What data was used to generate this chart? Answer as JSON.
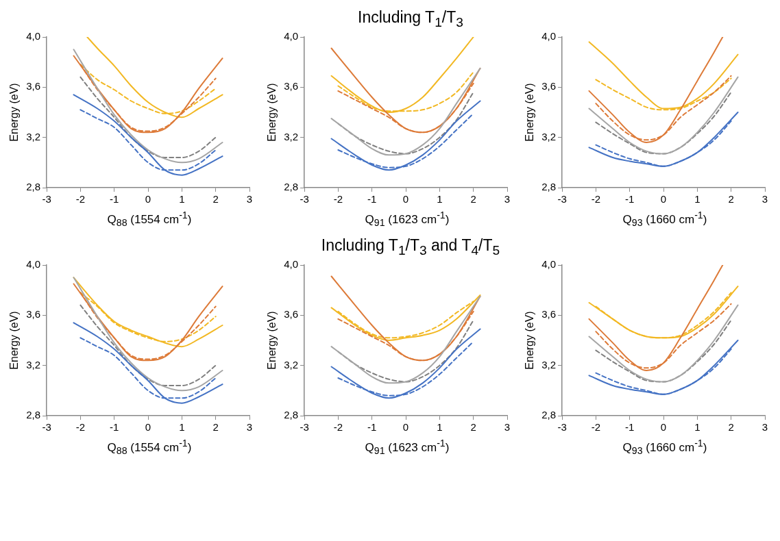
{
  "chart_data": [
    {
      "type": "line",
      "xlabel": "Q$_{88}$ (1554 cm$^{-1}$)",
      "ylabel": "Energy (eV)",
      "xlim": [
        -3,
        3
      ],
      "xticks": [
        -3,
        -2,
        -1,
        0,
        1,
        2,
        3
      ],
      "ylim": [
        2.8,
        4.0
      ],
      "yticks": [
        {
          "value": 2.8,
          "label": "2,8"
        },
        {
          "value": 3.2,
          "label": "3,2"
        },
        {
          "value": 3.6,
          "label": "3,6"
        },
        {
          "value": 4.0,
          "label": "4,0"
        }
      ],
      "grid": false,
      "marker": "none",
      "series": [
        {
          "color": "#4472c4",
          "line_style": "solid",
          "x": [
            -2.2,
            -1.5,
            -1,
            -0.5,
            0,
            0.5,
            1,
            1.5,
            2.2
          ],
          "values": [
            3.54,
            3.43,
            3.33,
            3.2,
            3.08,
            2.94,
            2.9,
            2.95,
            3.05
          ]
        },
        {
          "color": "#4472c4",
          "line_style": "dashed",
          "x": [
            -2,
            -1.5,
            -1,
            -0.5,
            0,
            0.5,
            1,
            1.5,
            2
          ],
          "values": [
            3.42,
            3.35,
            3.28,
            3.14,
            3.0,
            2.94,
            2.94,
            2.99,
            3.1
          ]
        },
        {
          "color": "#a5a5a5",
          "line_style": "solid",
          "x": [
            -2.2,
            -1.5,
            -1,
            -0.5,
            0,
            0.5,
            1,
            1.5,
            2.2
          ],
          "values": [
            3.9,
            3.59,
            3.38,
            3.22,
            3.1,
            3.03,
            3.0,
            3.03,
            3.16
          ]
        },
        {
          "color": "#7f7f7f",
          "line_style": "dashed",
          "x": [
            -2,
            -1.5,
            -1,
            -0.5,
            0,
            0.5,
            1,
            1.5,
            2
          ],
          "values": [
            3.68,
            3.51,
            3.36,
            3.2,
            3.09,
            3.04,
            3.04,
            3.09,
            3.2
          ]
        },
        {
          "color": "#dd7a38",
          "line_style": "solid",
          "x": [
            -2.2,
            -1.5,
            -1,
            -0.5,
            0,
            0.5,
            1,
            1.5,
            2.2
          ],
          "values": [
            3.85,
            3.59,
            3.42,
            3.27,
            3.24,
            3.27,
            3.4,
            3.59,
            3.83
          ]
        },
        {
          "color": "#dd7a38",
          "line_style": "dashed",
          "x": [
            -2,
            -1.5,
            -1,
            -0.5,
            0,
            0.5,
            1,
            1.5,
            2
          ],
          "values": [
            3.78,
            3.58,
            3.42,
            3.28,
            3.25,
            3.28,
            3.39,
            3.52,
            3.67
          ]
        },
        {
          "color": "#f2b823",
          "line_style": "solid",
          "x": [
            -1.8,
            -1.5,
            -1,
            -0.5,
            0,
            0.5,
            1,
            1.5,
            2.2
          ],
          "values": [
            4.0,
            3.91,
            3.77,
            3.61,
            3.48,
            3.4,
            3.36,
            3.43,
            3.54
          ]
        },
        {
          "color": "#f2b823",
          "line_style": "dashed",
          "x": [
            -2,
            -1.5,
            -1,
            -0.5,
            0,
            0.5,
            1,
            1.5,
            2
          ],
          "values": [
            3.78,
            3.66,
            3.58,
            3.49,
            3.43,
            3.39,
            3.41,
            3.49,
            3.59
          ]
        }
      ]
    },
    {
      "type": "line",
      "title": "Including T$_{1}$/T$_{3}$",
      "xlabel": "Q$_{91}$ (1623 cm$^{-1}$)",
      "ylabel": "Energy (eV)",
      "xlim": [
        -3,
        3
      ],
      "xticks": [
        -3,
        -2,
        -1,
        0,
        1,
        2,
        3
      ],
      "ylim": [
        2.8,
        4.0
      ],
      "yticks": [
        {
          "value": 2.8,
          "label": "2,8"
        },
        {
          "value": 3.2,
          "label": "3,2"
        },
        {
          "value": 3.6,
          "label": "3,6"
        },
        {
          "value": 4.0,
          "label": "4,0"
        }
      ],
      "grid": false,
      "marker": "none",
      "series": [
        {
          "color": "#4472c4",
          "line_style": "solid",
          "x": [
            -2.2,
            -1.5,
            -1,
            -0.5,
            0,
            0.5,
            1,
            1.5,
            2.2
          ],
          "values": [
            3.19,
            3.06,
            2.98,
            2.94,
            2.98,
            3.06,
            3.18,
            3.33,
            3.49
          ]
        },
        {
          "color": "#4472c4",
          "line_style": "dashed",
          "x": [
            -2,
            -1.5,
            -1,
            -0.5,
            0,
            0.5,
            1,
            1.5,
            2
          ],
          "values": [
            3.1,
            3.04,
            2.99,
            2.96,
            2.97,
            3.03,
            3.13,
            3.26,
            3.39
          ]
        },
        {
          "color": "#a5a5a5",
          "line_style": "solid",
          "x": [
            -2.2,
            -1.5,
            -1,
            -0.5,
            0,
            0.5,
            1,
            1.5,
            2.2
          ],
          "values": [
            3.35,
            3.21,
            3.11,
            3.06,
            3.07,
            3.14,
            3.27,
            3.47,
            3.75
          ]
        },
        {
          "color": "#7f7f7f",
          "line_style": "dashed",
          "x": [
            -2,
            -1.5,
            -1,
            -0.5,
            0,
            0.5,
            1,
            1.5,
            2
          ],
          "values": [
            3.31,
            3.21,
            3.14,
            3.09,
            3.07,
            3.11,
            3.2,
            3.34,
            3.56
          ]
        },
        {
          "color": "#dd7a38",
          "line_style": "solid",
          "x": [
            -2.2,
            -1.5,
            -1,
            -0.5,
            0,
            0.5,
            1,
            1.5,
            2.2
          ],
          "values": [
            3.91,
            3.68,
            3.52,
            3.38,
            3.27,
            3.24,
            3.29,
            3.43,
            3.75
          ]
        },
        {
          "color": "#dd7a38",
          "line_style": "dashed",
          "x": [
            -2,
            -1.5,
            -1,
            -0.5,
            0,
            0.5,
            1,
            1.5,
            2
          ],
          "values": [
            3.57,
            3.5,
            3.43,
            3.36,
            3.27,
            3.24,
            3.29,
            3.43,
            3.63
          ]
        },
        {
          "color": "#f2b823",
          "line_style": "solid",
          "x": [
            -2.2,
            -1.5,
            -1,
            -0.5,
            0,
            0.5,
            1,
            1.5,
            2
          ],
          "values": [
            3.69,
            3.54,
            3.45,
            3.4,
            3.43,
            3.52,
            3.67,
            3.83,
            4.0
          ]
        },
        {
          "color": "#f2b823",
          "line_style": "dashed",
          "x": [
            -2,
            -1.5,
            -1,
            -0.5,
            0,
            0.5,
            1,
            1.5,
            2
          ],
          "values": [
            3.61,
            3.52,
            3.44,
            3.41,
            3.41,
            3.42,
            3.47,
            3.56,
            3.72
          ]
        }
      ]
    },
    {
      "type": "line",
      "xlabel": "Q$_{93}$ (1660 cm$^{-1}$)",
      "ylabel": "Energy (eV)",
      "xlim": [
        -3,
        3
      ],
      "xticks": [
        -3,
        -2,
        -1,
        0,
        1,
        2,
        3
      ],
      "ylim": [
        2.8,
        4.0
      ],
      "yticks": [
        {
          "value": 2.8,
          "label": "2,8"
        },
        {
          "value": 3.2,
          "label": "3,2"
        },
        {
          "value": 3.6,
          "label": "3,6"
        },
        {
          "value": 4.0,
          "label": "4,0"
        }
      ],
      "grid": false,
      "marker": "none",
      "series": [
        {
          "color": "#4472c4",
          "line_style": "solid",
          "x": [
            -2.2,
            -1.5,
            -1,
            -0.5,
            0,
            0.5,
            1,
            1.5,
            2.2
          ],
          "values": [
            3.12,
            3.04,
            3.01,
            2.99,
            2.97,
            3.01,
            3.08,
            3.2,
            3.4
          ]
        },
        {
          "color": "#4472c4",
          "line_style": "dashed",
          "x": [
            -2,
            -1.5,
            -1,
            -0.5,
            0,
            0.5,
            1,
            1.5,
            2
          ],
          "values": [
            3.14,
            3.08,
            3.03,
            3.0,
            2.97,
            3.01,
            3.08,
            3.18,
            3.33
          ]
        },
        {
          "color": "#a5a5a5",
          "line_style": "solid",
          "x": [
            -2.2,
            -1.5,
            -1,
            -0.5,
            0,
            0.5,
            1,
            1.5,
            2.2
          ],
          "values": [
            3.43,
            3.27,
            3.16,
            3.09,
            3.07,
            3.12,
            3.24,
            3.4,
            3.68
          ]
        },
        {
          "color": "#7f7f7f",
          "line_style": "dashed",
          "x": [
            -2,
            -1.5,
            -1,
            -0.5,
            0,
            0.5,
            1,
            1.5,
            2
          ],
          "values": [
            3.32,
            3.23,
            3.15,
            3.08,
            3.07,
            3.12,
            3.23,
            3.37,
            3.56
          ]
        },
        {
          "color": "#dd7a38",
          "line_style": "solid",
          "x": [
            -2.2,
            -1.5,
            -1,
            -0.5,
            0,
            0.5,
            1,
            1.5,
            1.75
          ],
          "values": [
            3.57,
            3.38,
            3.24,
            3.16,
            3.22,
            3.42,
            3.65,
            3.88,
            4.0
          ]
        },
        {
          "color": "#dd7a38",
          "line_style": "dashed",
          "x": [
            -2,
            -1.5,
            -1,
            -0.5,
            0,
            0.5,
            1,
            1.5,
            2
          ],
          "values": [
            3.47,
            3.33,
            3.22,
            3.18,
            3.22,
            3.36,
            3.46,
            3.56,
            3.69
          ]
        },
        {
          "color": "#f2b823",
          "line_style": "solid",
          "x": [
            -2.2,
            -1.5,
            -1,
            -0.5,
            0,
            0.5,
            1,
            1.5,
            2.2
          ],
          "values": [
            3.96,
            3.79,
            3.65,
            3.52,
            3.43,
            3.44,
            3.51,
            3.63,
            3.86
          ]
        },
        {
          "color": "#f2b823",
          "line_style": "dashed",
          "x": [
            -2,
            -1.5,
            -1,
            -0.5,
            0,
            0.5,
            1,
            1.5,
            2
          ],
          "values": [
            3.66,
            3.58,
            3.51,
            3.44,
            3.42,
            3.43,
            3.49,
            3.56,
            3.67
          ]
        }
      ]
    },
    {
      "type": "line",
      "xlabel": "Q$_{88}$ (1554 cm$^{-1}$)",
      "ylabel": "Energy (eV)",
      "xlim": [
        -3,
        3
      ],
      "xticks": [
        -3,
        -2,
        -1,
        0,
        1,
        2,
        3
      ],
      "ylim": [
        2.8,
        4.0
      ],
      "yticks": [
        {
          "value": 2.8,
          "label": "2,8"
        },
        {
          "value": 3.2,
          "label": "3,2"
        },
        {
          "value": 3.6,
          "label": "3,6"
        },
        {
          "value": 4.0,
          "label": "4,0"
        }
      ],
      "grid": false,
      "marker": "none",
      "series": [
        {
          "color": "#4472c4",
          "line_style": "solid",
          "x": [
            -2.2,
            -1.5,
            -1,
            -0.5,
            0,
            0.5,
            1,
            1.5,
            2.2
          ],
          "values": [
            3.54,
            3.43,
            3.33,
            3.2,
            3.08,
            2.94,
            2.9,
            2.95,
            3.05
          ]
        },
        {
          "color": "#4472c4",
          "line_style": "dashed",
          "x": [
            -2,
            -1.5,
            -1,
            -0.5,
            0,
            0.5,
            1,
            1.5,
            2
          ],
          "values": [
            3.42,
            3.35,
            3.28,
            3.14,
            3.0,
            2.94,
            2.94,
            2.99,
            3.1
          ]
        },
        {
          "color": "#a5a5a5",
          "line_style": "solid",
          "x": [
            -2.2,
            -1.5,
            -1,
            -0.5,
            0,
            0.5,
            1,
            1.5,
            2.2
          ],
          "values": [
            3.9,
            3.59,
            3.38,
            3.22,
            3.1,
            3.03,
            3.0,
            3.03,
            3.16
          ]
        },
        {
          "color": "#7f7f7f",
          "line_style": "dashed",
          "x": [
            -2,
            -1.5,
            -1,
            -0.5,
            0,
            0.5,
            1,
            1.5,
            2
          ],
          "values": [
            3.68,
            3.51,
            3.36,
            3.2,
            3.09,
            3.04,
            3.04,
            3.09,
            3.2
          ]
        },
        {
          "color": "#dd7a38",
          "line_style": "solid",
          "x": [
            -2.2,
            -1.5,
            -1,
            -0.5,
            0,
            0.5,
            1,
            1.5,
            2.2
          ],
          "values": [
            3.85,
            3.59,
            3.42,
            3.27,
            3.24,
            3.27,
            3.4,
            3.59,
            3.83
          ]
        },
        {
          "color": "#dd7a38",
          "line_style": "dashed",
          "x": [
            -2,
            -1.5,
            -1,
            -0.5,
            0,
            0.5,
            1,
            1.5,
            2
          ],
          "values": [
            3.78,
            3.58,
            3.42,
            3.28,
            3.25,
            3.28,
            3.39,
            3.52,
            3.67
          ]
        },
        {
          "color": "#f2b823",
          "line_style": "solid",
          "x": [
            -2.2,
            -1.5,
            -1,
            -0.5,
            0,
            0.5,
            1,
            1.5,
            2.2
          ],
          "values": [
            3.9,
            3.68,
            3.55,
            3.48,
            3.43,
            3.38,
            3.35,
            3.41,
            3.52
          ]
        },
        {
          "color": "#f2b823",
          "line_style": "dashed",
          "x": [
            -2,
            -1.5,
            -1,
            -0.5,
            0,
            0.5,
            1,
            1.5,
            2
          ],
          "values": [
            3.78,
            3.67,
            3.54,
            3.47,
            3.42,
            3.39,
            3.41,
            3.48,
            3.59
          ]
        }
      ]
    },
    {
      "type": "line",
      "title": "Including T$_{1}$/T$_{3}$ and T$_{4}$/T$_{5}$",
      "xlabel": "Q$_{91}$ (1623 cm$^{-1}$)",
      "ylabel": "Energy (eV)",
      "xlim": [
        -3,
        3
      ],
      "xticks": [
        -3,
        -2,
        -1,
        0,
        1,
        2,
        3
      ],
      "ylim": [
        2.8,
        4.0
      ],
      "yticks": [
        {
          "value": 2.8,
          "label": "2,8"
        },
        {
          "value": 3.2,
          "label": "3,2"
        },
        {
          "value": 3.6,
          "label": "3,6"
        },
        {
          "value": 4.0,
          "label": "4,0"
        }
      ],
      "grid": false,
      "marker": "none",
      "series": [
        {
          "color": "#4472c4",
          "line_style": "solid",
          "x": [
            -2.2,
            -1.5,
            -1,
            -0.5,
            0,
            0.5,
            1,
            1.5,
            2.2
          ],
          "values": [
            3.19,
            3.06,
            2.98,
            2.94,
            2.98,
            3.06,
            3.18,
            3.33,
            3.49
          ]
        },
        {
          "color": "#4472c4",
          "line_style": "dashed",
          "x": [
            -2,
            -1.5,
            -1,
            -0.5,
            0,
            0.5,
            1,
            1.5,
            2
          ],
          "values": [
            3.1,
            3.04,
            2.99,
            2.96,
            2.97,
            3.03,
            3.13,
            3.26,
            3.39
          ]
        },
        {
          "color": "#a5a5a5",
          "line_style": "solid",
          "x": [
            -2.2,
            -1.5,
            -1,
            -0.5,
            0,
            0.5,
            1,
            1.5,
            2.2
          ],
          "values": [
            3.35,
            3.21,
            3.11,
            3.06,
            3.07,
            3.14,
            3.27,
            3.47,
            3.75
          ]
        },
        {
          "color": "#7f7f7f",
          "line_style": "dashed",
          "x": [
            -2,
            -1.5,
            -1,
            -0.5,
            0,
            0.5,
            1,
            1.5,
            2
          ],
          "values": [
            3.31,
            3.21,
            3.14,
            3.09,
            3.07,
            3.11,
            3.2,
            3.34,
            3.56
          ]
        },
        {
          "color": "#dd7a38",
          "line_style": "solid",
          "x": [
            -2.2,
            -1.5,
            -1,
            -0.5,
            0,
            0.5,
            1,
            1.5,
            2.2
          ],
          "values": [
            3.91,
            3.68,
            3.52,
            3.38,
            3.27,
            3.24,
            3.29,
            3.43,
            3.75
          ]
        },
        {
          "color": "#dd7a38",
          "line_style": "dashed",
          "x": [
            -2,
            -1.5,
            -1,
            -0.5,
            0,
            0.5,
            1,
            1.5,
            2
          ],
          "values": [
            3.57,
            3.5,
            3.43,
            3.36,
            3.27,
            3.24,
            3.29,
            3.43,
            3.63
          ]
        },
        {
          "color": "#f2b823",
          "line_style": "solid",
          "x": [
            -2.2,
            -1.5,
            -1,
            -0.5,
            0,
            0.5,
            1,
            1.5,
            2.2
          ],
          "values": [
            3.66,
            3.52,
            3.44,
            3.4,
            3.42,
            3.44,
            3.48,
            3.57,
            3.76
          ]
        },
        {
          "color": "#f2b823",
          "line_style": "dashed",
          "x": [
            -2,
            -1.5,
            -1,
            -0.5,
            0,
            0.5,
            1,
            1.5,
            2
          ],
          "values": [
            3.63,
            3.53,
            3.45,
            3.42,
            3.43,
            3.46,
            3.52,
            3.62,
            3.71
          ]
        }
      ]
    },
    {
      "type": "line",
      "xlabel": "Q$_{93}$ (1660 cm$^{-1}$)",
      "ylabel": "Energy (eV)",
      "xlim": [
        -3,
        3
      ],
      "xticks": [
        -3,
        -2,
        -1,
        0,
        1,
        2,
        3
      ],
      "ylim": [
        2.8,
        4.0
      ],
      "yticks": [
        {
          "value": 2.8,
          "label": "2,8"
        },
        {
          "value": 3.2,
          "label": "3,2"
        },
        {
          "value": 3.6,
          "label": "3,6"
        },
        {
          "value": 4.0,
          "label": "4,0"
        }
      ],
      "grid": false,
      "marker": "none",
      "series": [
        {
          "color": "#4472c4",
          "line_style": "solid",
          "x": [
            -2.2,
            -1.5,
            -1,
            -0.5,
            0,
            0.5,
            1,
            1.5,
            2.2
          ],
          "values": [
            3.12,
            3.04,
            3.01,
            2.99,
            2.97,
            3.01,
            3.08,
            3.2,
            3.4
          ]
        },
        {
          "color": "#4472c4",
          "line_style": "dashed",
          "x": [
            -2,
            -1.5,
            -1,
            -0.5,
            0,
            0.5,
            1,
            1.5,
            2
          ],
          "values": [
            3.14,
            3.08,
            3.03,
            3.0,
            2.97,
            3.01,
            3.08,
            3.18,
            3.33
          ]
        },
        {
          "color": "#a5a5a5",
          "line_style": "solid",
          "x": [
            -2.2,
            -1.5,
            -1,
            -0.5,
            0,
            0.5,
            1,
            1.5,
            2.2
          ],
          "values": [
            3.43,
            3.27,
            3.16,
            3.09,
            3.07,
            3.12,
            3.24,
            3.4,
            3.68
          ]
        },
        {
          "color": "#7f7f7f",
          "line_style": "dashed",
          "x": [
            -2,
            -1.5,
            -1,
            -0.5,
            0,
            0.5,
            1,
            1.5,
            2
          ],
          "values": [
            3.32,
            3.23,
            3.15,
            3.08,
            3.07,
            3.12,
            3.23,
            3.37,
            3.56
          ]
        },
        {
          "color": "#dd7a38",
          "line_style": "solid",
          "x": [
            -2.2,
            -1.5,
            -1,
            -0.5,
            0,
            0.5,
            1,
            1.5,
            1.75
          ],
          "values": [
            3.57,
            3.38,
            3.24,
            3.16,
            3.22,
            3.42,
            3.65,
            3.88,
            4.0
          ]
        },
        {
          "color": "#dd7a38",
          "line_style": "dashed",
          "x": [
            -2,
            -1.5,
            -1,
            -0.5,
            0,
            0.5,
            1,
            1.5,
            2
          ],
          "values": [
            3.47,
            3.33,
            3.22,
            3.18,
            3.22,
            3.36,
            3.46,
            3.56,
            3.69
          ]
        },
        {
          "color": "#f2b823",
          "line_style": "solid",
          "x": [
            -2.2,
            -1.5,
            -1,
            -0.5,
            0,
            0.5,
            1,
            1.5,
            2.2
          ],
          "values": [
            3.7,
            3.57,
            3.48,
            3.43,
            3.42,
            3.43,
            3.5,
            3.61,
            3.83
          ]
        },
        {
          "color": "#f2b823",
          "line_style": "dashed",
          "x": [
            -2,
            -1.5,
            -1,
            -0.5,
            0,
            0.5,
            1,
            1.5,
            2
          ],
          "values": [
            3.67,
            3.57,
            3.48,
            3.43,
            3.42,
            3.44,
            3.52,
            3.63,
            3.78
          ]
        }
      ]
    }
  ]
}
